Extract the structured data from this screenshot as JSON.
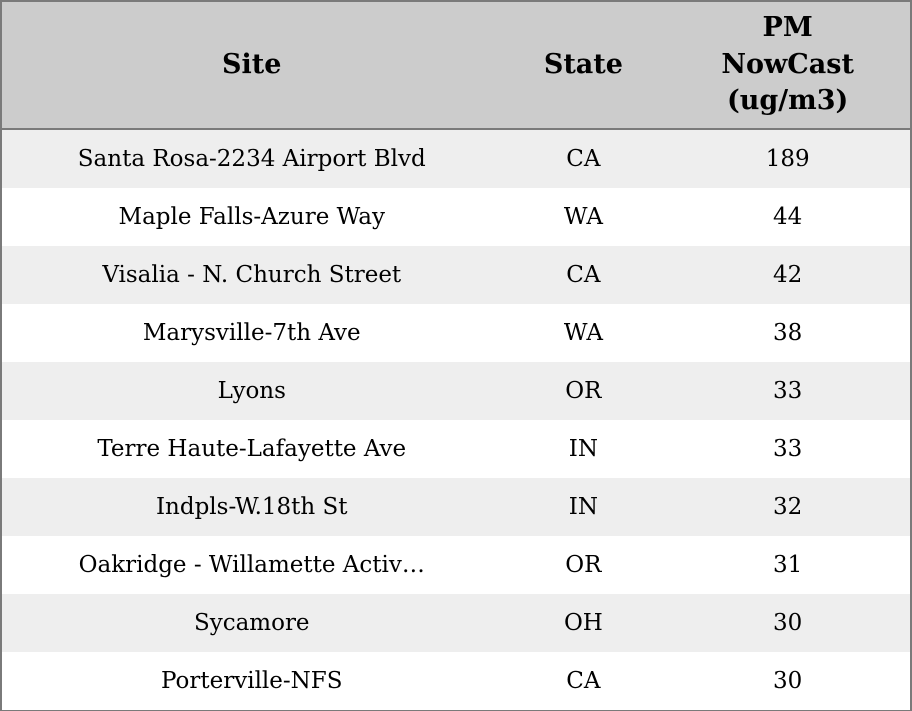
{
  "chart_data": {
    "type": "table",
    "title": "",
    "columns": [
      "Site",
      "State",
      "PM NowCast (ug/m3)"
    ],
    "rows": [
      [
        "Santa Rosa-2234 Airport Blvd",
        "CA",
        189
      ],
      [
        "Maple Falls-Azure Way",
        "WA",
        44
      ],
      [
        "Visalia - N. Church Street",
        "CA",
        42
      ],
      [
        "Marysville-7th Ave",
        "WA",
        38
      ],
      [
        "Lyons",
        "OR",
        33
      ],
      [
        "Terre Haute-Lafayette Ave",
        "IN",
        33
      ],
      [
        "Indpls-W.18th St",
        "IN",
        32
      ],
      [
        "Oakridge - Willamette Activ…",
        "OR",
        31
      ],
      [
        "Sycamore",
        "OH",
        30
      ],
      [
        "Porterville-NFS",
        "CA",
        30
      ]
    ]
  },
  "header_display": {
    "site": "Site",
    "state": "State",
    "pm": "PM\nNowCast\n(ug/m3)"
  },
  "colors": {
    "header_bg": "#cccccc",
    "stripe_bg": "#eeeeee",
    "row_bg": "#ffffff",
    "border": "#7a7a7a",
    "text": "#000000"
  }
}
